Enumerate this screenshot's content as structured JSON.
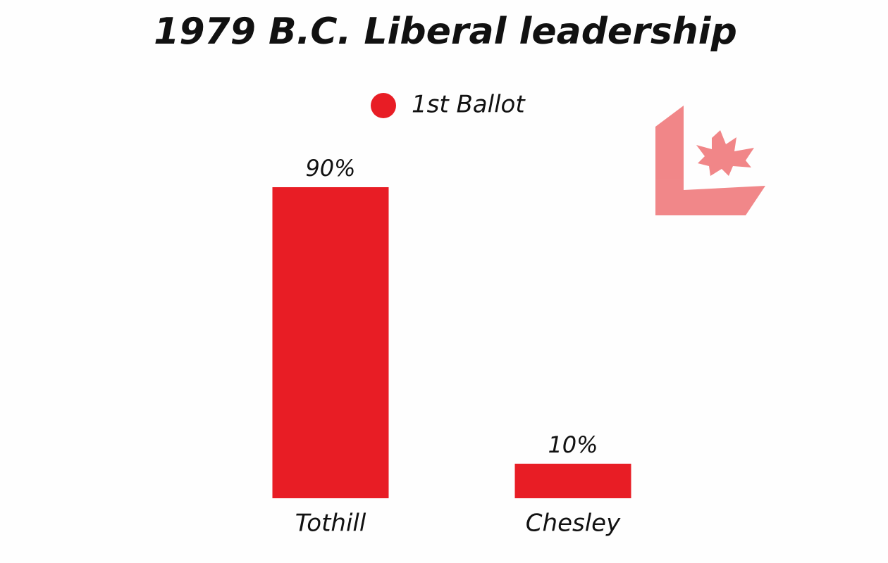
{
  "chart_data": {
    "type": "bar",
    "title": "1979 B.C. Liberal leadership",
    "categories": [
      "Tothill",
      "Chesley"
    ],
    "series": [
      {
        "name": "1st Ballot",
        "color": "#e81d25",
        "values": [
          90,
          10
        ],
        "value_labels": [
          "90%",
          "10%"
        ]
      }
    ]
  }
}
